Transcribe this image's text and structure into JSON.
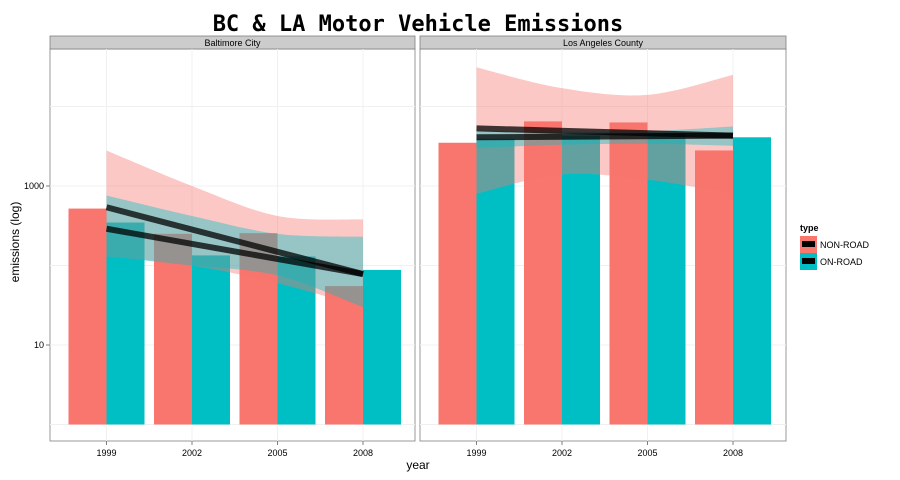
{
  "chart_data": {
    "type": "bar",
    "title": "BC & LA Motor Vehicle Emissions",
    "xlabel": "year",
    "ylabel": "emissions (log)",
    "y_scale": "log10",
    "ylim": [
      1,
      20000
    ],
    "y_ticks": [
      {
        "value": 10,
        "label": "10"
      },
      {
        "value": 1000,
        "label": "1000"
      }
    ],
    "grid": true,
    "categories": [
      "1999",
      "2002",
      "2005",
      "2008"
    ],
    "legend": {
      "title": "type",
      "placement": "right",
      "entries": [
        {
          "label": "NON-ROAD",
          "color": "#F8766D"
        },
        {
          "label": "ON-ROAD",
          "color": "#00BFC4"
        }
      ]
    },
    "series_colors": {
      "NON-ROAD": "#F8766D",
      "ON-ROAD": "#00BFC4"
    },
    "smooth_line_color": "#000000",
    "panels": [
      {
        "label": "Baltimore City",
        "series": [
          {
            "key": "NON-ROAD",
            "values": [
              520,
              250,
              255,
              55
            ]
          },
          {
            "key": "ON-ROAD",
            "values": [
              347,
              134,
              130,
              88
            ]
          }
        ],
        "smooth": [
          {
            "key": "NON-ROAD",
            "start": 290,
            "end": 78,
            "band_upper": [
              2800,
              1000,
              420,
              380
            ],
            "band_lower": [
              130,
              100,
              60,
              30
            ]
          },
          {
            "key": "ON-ROAD",
            "start": 540,
            "end": 78,
            "band_upper": [
              760,
              420,
              250,
              230
            ],
            "band_lower": [
              130,
              100,
              75,
              30
            ]
          }
        ]
      },
      {
        "label": "Los Angeles County",
        "series": [
          {
            "key": "NON-ROAD",
            "values": [
              3500,
              6500,
              6300,
              2800
            ]
          },
          {
            "key": "ON-ROAD",
            "values": [
              3931,
              4274,
              4601,
              4101
            ]
          }
        ],
        "smooth": [
          {
            "key": "NON-ROAD",
            "start": 5300,
            "end": 4300,
            "band_upper": [
              31000,
              17000,
              14000,
              25000
            ],
            "band_lower": [
              800,
              1400,
              1200,
              800
            ]
          },
          {
            "key": "ON-ROAD",
            "start": 4100,
            "end": 4300,
            "band_upper": [
              5000,
              4800,
              4900,
              5600
            ],
            "band_lower": [
              3000,
              3300,
              3400,
              3200
            ]
          }
        ]
      }
    ]
  }
}
